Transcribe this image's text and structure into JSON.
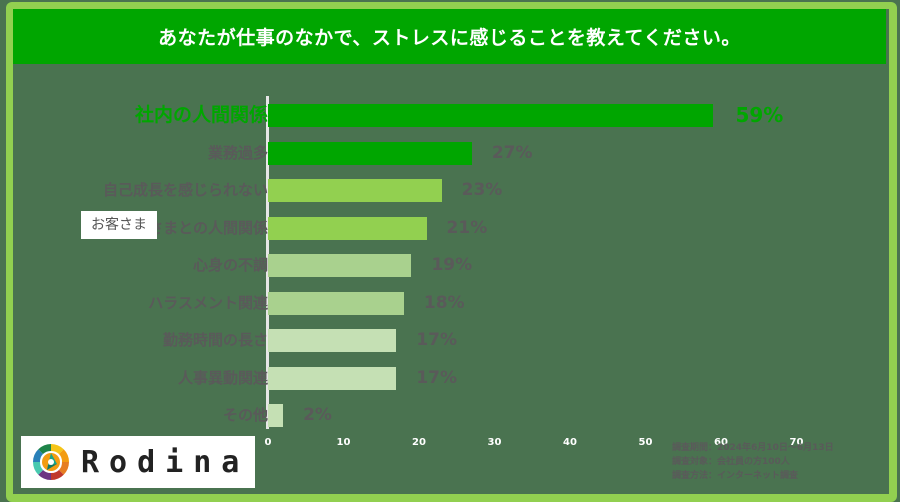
{
  "chart_data": {
    "type": "bar",
    "orientation": "horizontal",
    "title": "あなたが仕事のなかで、ストレスに感じることを教えてください。",
    "categories": [
      "社内の人間関係",
      "業務過多",
      "自己成長を感じられない",
      "お客さまとの人間関係",
      "心身の不調",
      "ハラスメント関連",
      "勤務時間の長さ",
      "人事異動関連",
      "その他"
    ],
    "values": [
      59,
      27,
      23,
      21,
      19,
      18,
      17,
      17,
      2
    ],
    "value_labels": [
      "59%",
      "27%",
      "23%",
      "21%",
      "19%",
      "18%",
      "17%",
      "17%",
      "2%"
    ],
    "bar_colors": [
      "#00a600",
      "#00a600",
      "#92d050",
      "#92d050",
      "#a9d18e",
      "#a9d18e",
      "#c5e0b4",
      "#c5e0b4",
      "#c5e0b4"
    ],
    "xlabel": "",
    "ylabel": "",
    "xlim": [
      0,
      70
    ],
    "x_ticks": [
      "0",
      "10",
      "20",
      "30",
      "40",
      "50",
      "60",
      "70"
    ],
    "grid": false,
    "legend": null
  },
  "header": {
    "title": "あなたが仕事のなかで、ストレスに感じることを教えてください。"
  },
  "callout": {
    "text": "お客さま"
  },
  "logo": {
    "text": "Rodina"
  },
  "notes": [
    "調査期間：2024年6月10日～6月13日",
    "調査対象：会社員の方100人",
    "調査方法：インターネット調査"
  ]
}
